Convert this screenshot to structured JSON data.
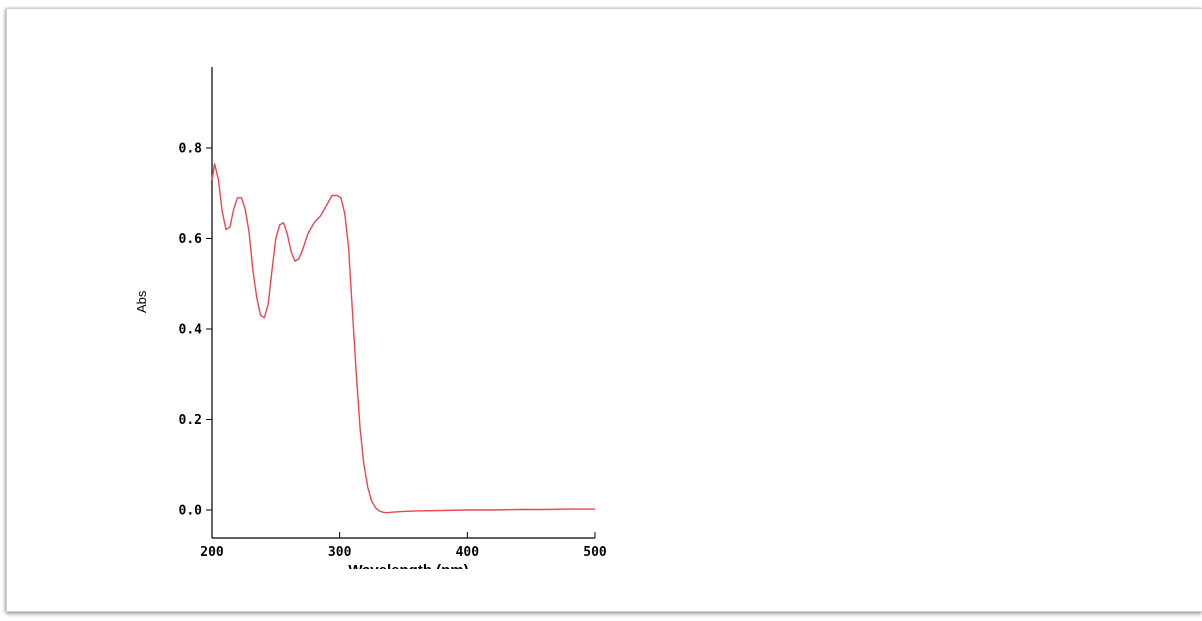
{
  "chart_data": {
    "type": "line",
    "xlabel": "Wavelength (nm)",
    "ylabel": "Abs",
    "xlim": [
      200,
      500
    ],
    "ylim": [
      0.0,
      0.95
    ],
    "x_ticks": [
      200,
      300,
      400,
      500
    ],
    "y_ticks": [
      0.0,
      0.2,
      0.4,
      0.6,
      0.8
    ],
    "x_tick_labels": [
      "200",
      "300",
      "400",
      "500"
    ],
    "y_tick_labels": [
      "0.0",
      "0.2",
      "0.4",
      "0.6",
      "0.8"
    ],
    "grid": false,
    "line_color": "#e8474f",
    "series": [
      {
        "x": [
          200,
          202,
          205,
          208,
          211,
          214,
          217,
          220,
          223,
          226,
          229,
          232,
          235,
          238,
          241,
          244,
          247,
          250,
          253,
          256,
          259,
          262,
          265,
          268,
          271,
          275,
          280,
          285,
          290,
          294,
          298,
          301,
          304,
          307,
          310,
          313,
          316,
          319,
          322,
          325,
          328,
          331,
          334,
          337,
          340,
          345,
          350,
          360,
          380,
          400,
          420,
          440,
          460,
          480,
          500
        ],
        "y": [
          0.73,
          0.765,
          0.73,
          0.66,
          0.62,
          0.625,
          0.665,
          0.69,
          0.69,
          0.665,
          0.615,
          0.53,
          0.47,
          0.43,
          0.425,
          0.455,
          0.53,
          0.6,
          0.63,
          0.635,
          0.61,
          0.57,
          0.55,
          0.555,
          0.575,
          0.61,
          0.635,
          0.65,
          0.675,
          0.695,
          0.695,
          0.69,
          0.655,
          0.58,
          0.44,
          0.3,
          0.18,
          0.1,
          0.05,
          0.02,
          0.005,
          -0.002,
          -0.005,
          -0.006,
          -0.005,
          -0.004,
          -0.003,
          -0.002,
          -0.001,
          0.0,
          0.0,
          0.001,
          0.001,
          0.002,
          0.002
        ]
      }
    ]
  }
}
